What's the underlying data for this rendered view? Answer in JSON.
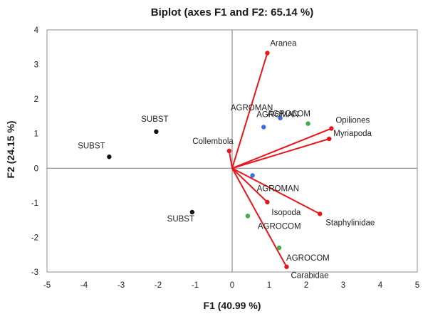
{
  "chart_data": {
    "type": "scatter",
    "title": "Biplot (axes F1 and F2: 65.14 %)",
    "xlabel": "F1 (40.99 %)",
    "ylabel": "F2 (24.15 %)",
    "xlim": [
      -5,
      5
    ],
    "ylim": [
      -3,
      4
    ],
    "xticks": [
      "-5",
      "-4",
      "-3",
      "-2",
      "-1",
      "0",
      "1",
      "2",
      "3",
      "4",
      "5"
    ],
    "yticks": [
      "-3",
      "-2",
      "-1",
      "0",
      "1",
      "2",
      "3",
      "4"
    ],
    "grid": false,
    "colors": {
      "variables": "#e8151b",
      "subst": "#111111",
      "agroman": "#3a6fe0",
      "agrocom": "#3cae4a"
    },
    "variables": [
      {
        "label": "Aranea",
        "x": 0.95,
        "y": 3.33
      },
      {
        "label": "Opiliones",
        "x": 2.68,
        "y": 1.15
      },
      {
        "label": "Myriapoda",
        "x": 2.62,
        "y": 0.85
      },
      {
        "label": "Collembola",
        "x": -0.08,
        "y": 0.5
      },
      {
        "label": "Isopoda",
        "x": 0.95,
        "y": -0.98
      },
      {
        "label": "Staphylinidae",
        "x": 2.37,
        "y": -1.32
      },
      {
        "label": "Carabidae",
        "x": 1.47,
        "y": -2.85
      }
    ],
    "observations": [
      {
        "label": "SUBST",
        "group": "subst",
        "x": -3.32,
        "y": 0.33
      },
      {
        "label": "SUBST",
        "group": "subst",
        "x": -2.05,
        "y": 1.06
      },
      {
        "label": "SUBST",
        "group": "subst",
        "x": -1.08,
        "y": -1.27
      },
      {
        "label": "AGROMAN",
        "group": "agroman",
        "x": 0.85,
        "y": 1.19
      },
      {
        "label": "AGROMAN",
        "group": "agroman",
        "x": 1.3,
        "y": 1.45
      },
      {
        "label": "AGROMAN",
        "group": "agroman",
        "x": 0.55,
        "y": -0.21
      },
      {
        "label": "AGROCOM",
        "group": "agrocom",
        "x": 2.05,
        "y": 1.29
      },
      {
        "label": "AGROCOM",
        "group": "agrocom",
        "x": 0.42,
        "y": -1.38
      },
      {
        "label": "AGROCOM",
        "group": "agrocom",
        "x": 1.27,
        "y": -2.3
      }
    ]
  }
}
